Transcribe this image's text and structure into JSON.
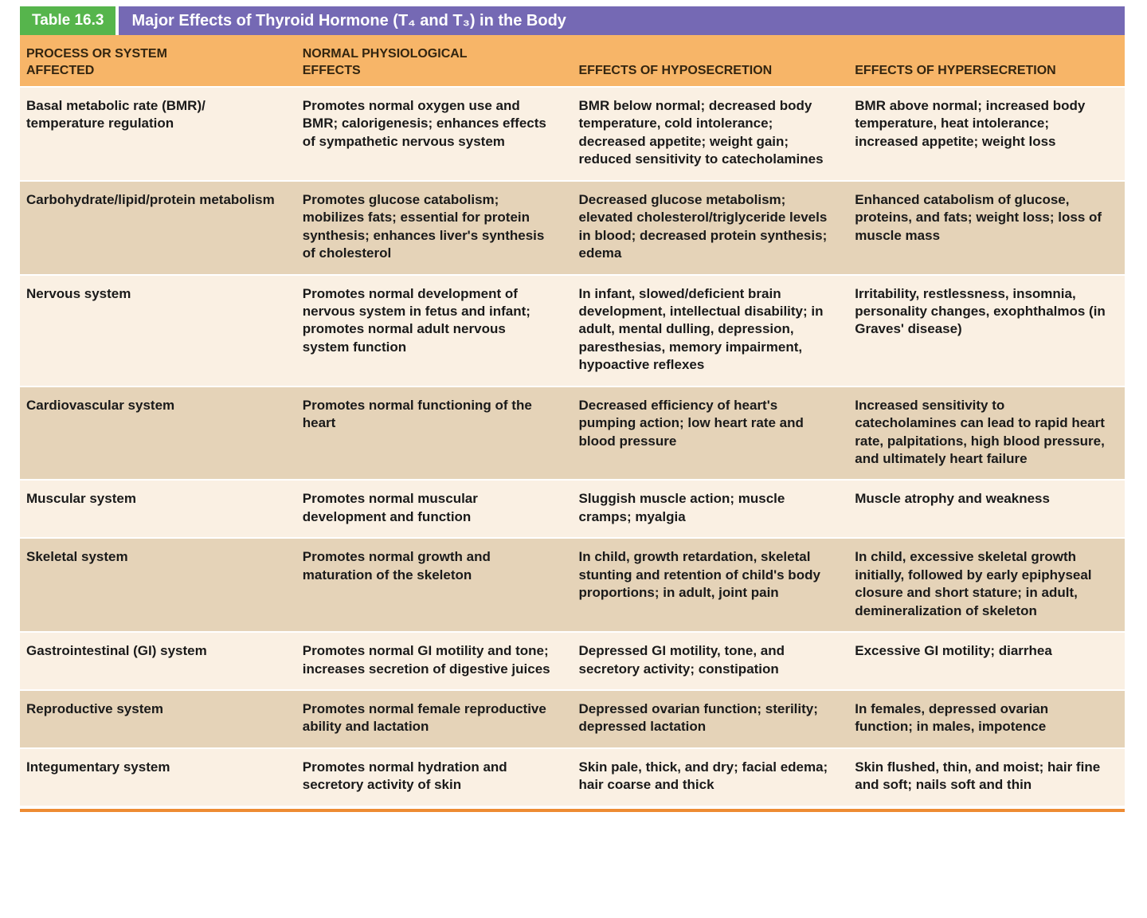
{
  "title_bar": {
    "label": "Table 16.3",
    "title": "Major Effects of Thyroid Hormone (T₄ and T₃) in the Body"
  },
  "colors": {
    "label_green": "#56b54c",
    "title_purple": "#7569b4",
    "header_orange": "#f7b568",
    "row_light": "#faf0e3",
    "row_dark": "#e5d3b8",
    "bottom_rule_orange": "#ee8b33"
  },
  "table": {
    "headers": [
      "PROCESS OR SYSTEM\nAFFECTED",
      "NORMAL PHYSIOLOGICAL\nEFFECTS",
      "EFFECTS OF HYPOSECRETION",
      "EFFECTS OF HYPERSECRETION"
    ],
    "rows": [
      {
        "cells": [
          "Basal metabolic rate (BMR)/ temperature regulation",
          "Promotes normal oxygen use and BMR; calorigenesis; enhances effects of sympathetic nervous system",
          "BMR below normal; decreased body temperature, cold intolerance; decreased appetite; weight gain; reduced sensitivity to catecholamines",
          "BMR above normal; increased body temperature, heat intolerance; increased appetite; weight loss"
        ]
      },
      {
        "cells": [
          "Carbohydrate/lipid/protein metabolism",
          "Promotes glucose catabolism; mobilizes fats; essential for protein synthesis; enhances liver's synthesis of cholesterol",
          "Decreased glucose metabolism; elevated cholesterol/triglyceride levels in blood; decreased protein synthesis; edema",
          "Enhanced catabolism of glucose, proteins, and fats; weight loss; loss of muscle mass"
        ]
      },
      {
        "cells": [
          "Nervous system",
          "Promotes normal development of nervous system in fetus and infant; promotes normal adult nervous system function",
          "In infant, slowed/deficient brain development, intellectual disability; in adult, mental dulling, depression, paresthesias, memory impairment, hypoactive reflexes",
          "Irritability, restlessness, insomnia, personality changes, exophthalmos (in Graves' disease)"
        ]
      },
      {
        "cells": [
          "Cardiovascular system",
          "Promotes normal functioning of the heart",
          "Decreased efficiency of heart's pumping action; low heart rate and blood pressure",
          "Increased sensitivity to catecholamines can lead to rapid heart rate, palpitations, high blood pressure, and ultimately heart failure"
        ]
      },
      {
        "cells": [
          "Muscular system",
          "Promotes normal muscular development and function",
          "Sluggish muscle action; muscle cramps; myalgia",
          "Muscle atrophy and weakness"
        ]
      },
      {
        "cells": [
          "Skeletal system",
          "Promotes normal growth and maturation of the skeleton",
          "In child, growth retardation, skeletal stunting and retention of child's body proportions; in adult, joint pain",
          "In child, excessive skeletal growth initially, followed by early epiphyseal closure and short stature; in adult, demineralization of skeleton"
        ]
      },
      {
        "cells": [
          "Gastrointestinal (GI) system",
          "Promotes normal GI motility and tone; increases secretion of digestive juices",
          "Depressed GI motility, tone, and secretory activity; constipation",
          "Excessive GI motility; diarrhea"
        ]
      },
      {
        "cells": [
          "Reproductive system",
          "Promotes normal female reproductive ability and lactation",
          "Depressed ovarian function; sterility; depressed lactation",
          "In females, depressed ovarian function; in males, impotence"
        ]
      },
      {
        "cells": [
          "Integumentary system",
          "Promotes normal hydration and secretory activity of skin",
          "Skin pale, thick, and dry; facial edema; hair coarse and thick",
          "Skin flushed, thin, and moist; hair fine and soft; nails soft and thin"
        ]
      }
    ]
  }
}
